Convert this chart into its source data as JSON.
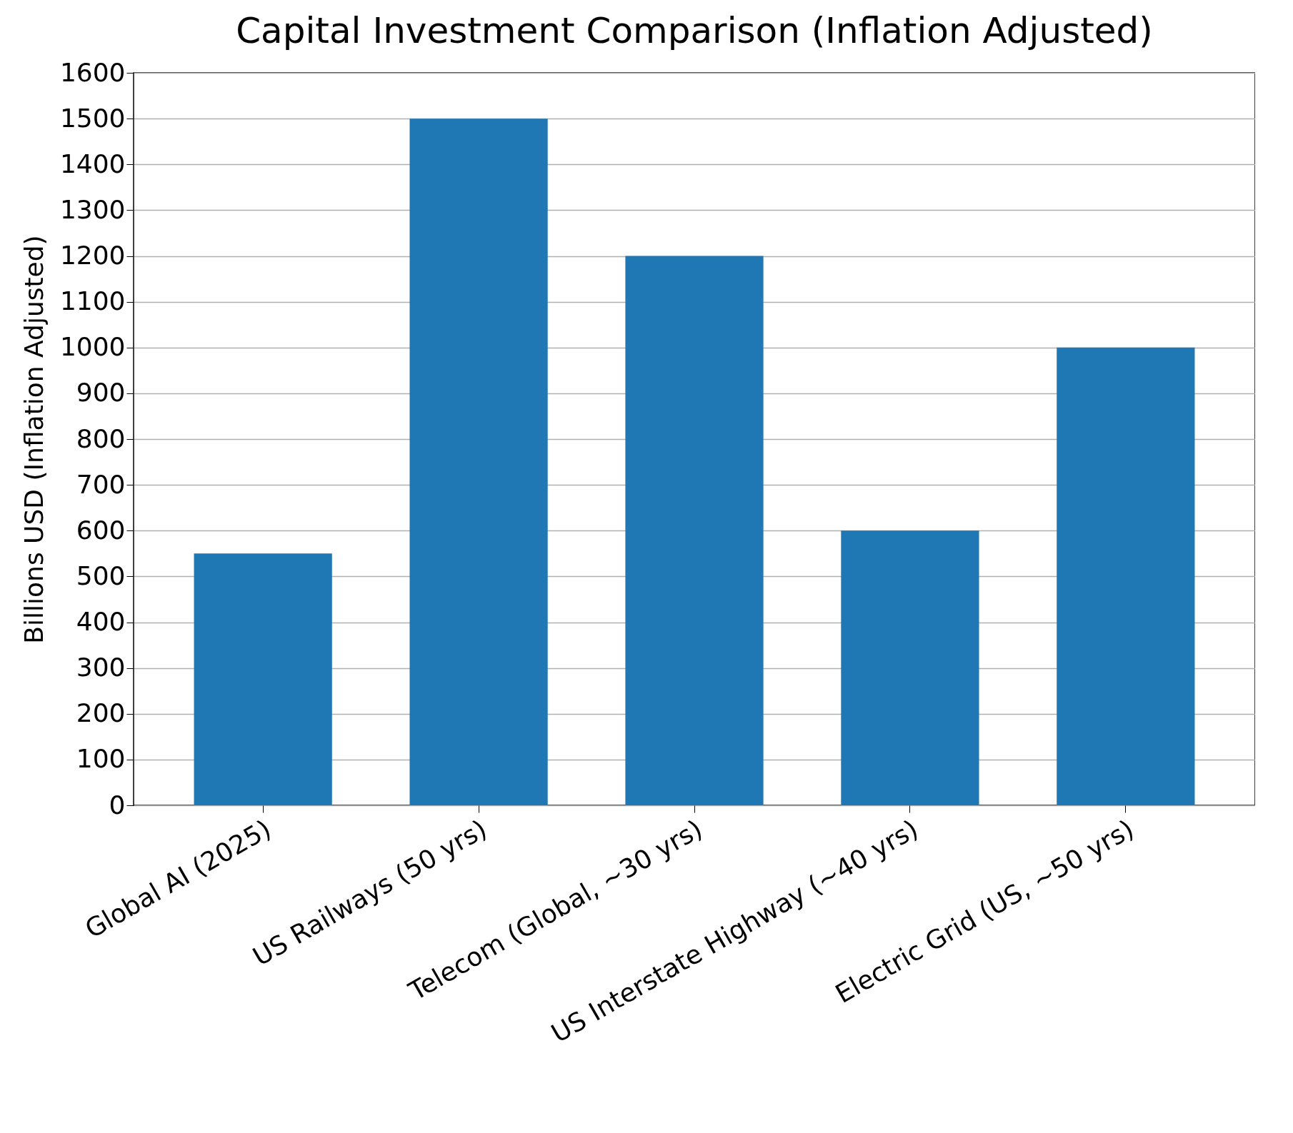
{
  "chart_data": {
    "type": "bar",
    "title": "Capital Investment Comparison (Inflation Adjusted)",
    "ylabel": "Billions USD (Inflation Adjusted)",
    "categories": [
      "Global AI (2025)",
      "US Railways (50 yrs)",
      "Telecom (Global, ~30 yrs)",
      "US Interstate Highway (~40 yrs)",
      "Electric Grid (US, ~50 yrs)"
    ],
    "values": [
      550,
      1500,
      1200,
      600,
      1000
    ],
    "color": "#1f77b4",
    "ylim": [
      0,
      1600
    ],
    "yticks": [
      0,
      100,
      200,
      300,
      400,
      500,
      600,
      700,
      800,
      900,
      1000,
      1100,
      1200,
      1300,
      1400,
      1500,
      1600
    ],
    "grid": "y"
  }
}
